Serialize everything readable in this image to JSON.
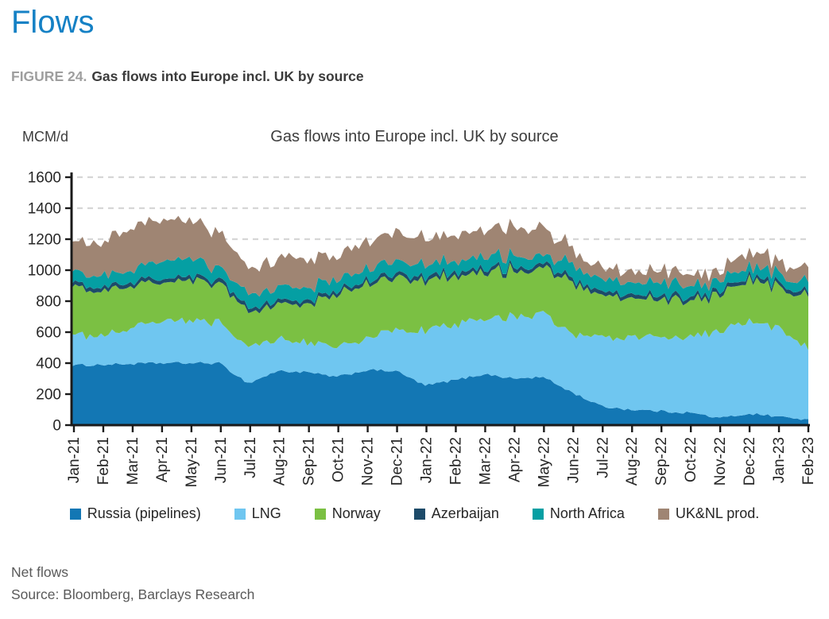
{
  "page": {
    "title": "Flows"
  },
  "figure": {
    "label": "FIGURE 24.",
    "title": "Gas flows into Europe incl. UK by source"
  },
  "chart_data": {
    "type": "area",
    "stacked": true,
    "title": "Gas flows into Europe incl. UK by source",
    "unit_label": "MCM/d",
    "ylim": [
      0,
      1600
    ],
    "ytick_step": 200,
    "grid": "dashed-horizontal",
    "legend_position": "bottom",
    "categories": [
      "Jan-21",
      "Feb-21",
      "Mar-21",
      "Apr-21",
      "May-21",
      "Jun-21",
      "Jul-21",
      "Aug-21",
      "Sep-21",
      "Oct-21",
      "Nov-21",
      "Dec-21",
      "Jan-22",
      "Feb-22",
      "Mar-22",
      "Apr-22",
      "May-22",
      "Jun-22",
      "Jul-22",
      "Aug-22",
      "Sep-22",
      "Oct-22",
      "Nov-22",
      "Dec-22",
      "Jan-23",
      "Feb-23"
    ],
    "series": [
      {
        "name": "Russia (pipelines)",
        "color": "#1377B4",
        "values": [
          385,
          390,
          395,
          400,
          400,
          400,
          270,
          350,
          340,
          310,
          355,
          350,
          255,
          290,
          330,
          300,
          310,
          210,
          120,
          100,
          90,
          80,
          45,
          75,
          55,
          35
        ]
      },
      {
        "name": "LNG",
        "color": "#6FC6F0",
        "values": [
          185,
          190,
          230,
          260,
          285,
          255,
          230,
          205,
          190,
          190,
          205,
          265,
          355,
          350,
          350,
          400,
          410,
          375,
          440,
          470,
          470,
          490,
          555,
          605,
          565,
          465
        ]
      },
      {
        "name": "Norway",
        "color": "#7BC043",
        "values": [
          320,
          290,
          275,
          260,
          255,
          245,
          240,
          225,
          250,
          345,
          345,
          335,
          320,
          310,
          300,
          300,
          300,
          335,
          270,
          250,
          250,
          230,
          240,
          270,
          270,
          330
        ]
      },
      {
        "name": "Azerbaijan",
        "color": "#1D4B69",
        "values": [
          25,
          25,
          25,
          25,
          25,
          25,
          25,
          25,
          25,
          25,
          25,
          25,
          25,
          25,
          25,
          25,
          25,
          25,
          25,
          25,
          25,
          25,
          25,
          25,
          25,
          25
        ]
      },
      {
        "name": "North Africa",
        "color": "#059FA3",
        "values": [
          70,
          75,
          75,
          110,
          115,
          75,
          85,
          85,
          85,
          80,
          75,
          85,
          75,
          75,
          75,
          75,
          55,
          95,
          75,
          85,
          85,
          75,
          65,
          65,
          65,
          65
        ]
      },
      {
        "name": "UK&NL prod.",
        "color": "#9F8573",
        "values": [
          205,
          210,
          280,
          270,
          240,
          230,
          180,
          190,
          180,
          140,
          180,
          190,
          170,
          170,
          180,
          180,
          180,
          100,
          80,
          70,
          80,
          80,
          70,
          100,
          80,
          80
        ]
      }
    ]
  },
  "footer": {
    "note": "Net flows",
    "source": "Source: Bloomberg, Barclays Research"
  }
}
